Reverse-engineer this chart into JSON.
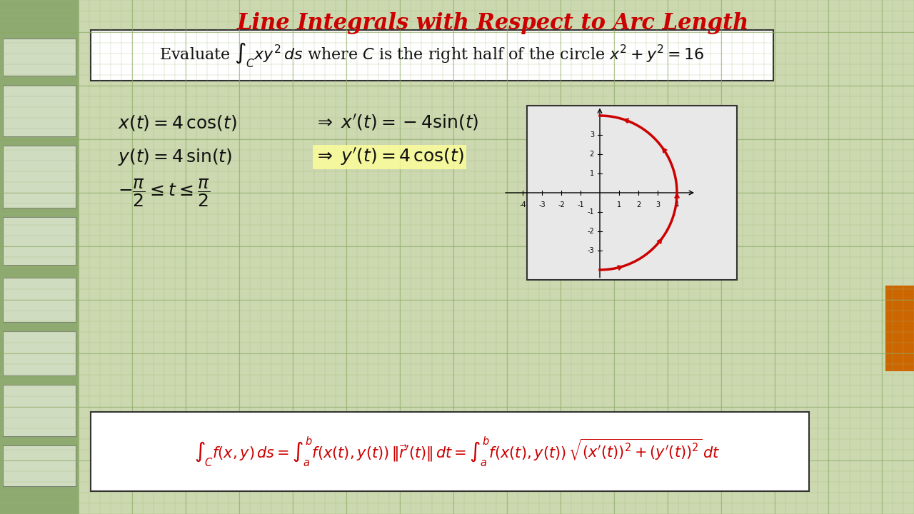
{
  "title": "Line Integrals with Respect to Arc Length",
  "title_color": "#cc0000",
  "bg_color": "#c8d8a8",
  "main_bg": "#d4e0b0",
  "sidebar_color": "#b0c090",
  "box_bg": "#ffffff",
  "grid_color": "#90b070",
  "text_color": "#111111",
  "red_color": "#cc0000",
  "yellow_highlight": "#ffff00"
}
